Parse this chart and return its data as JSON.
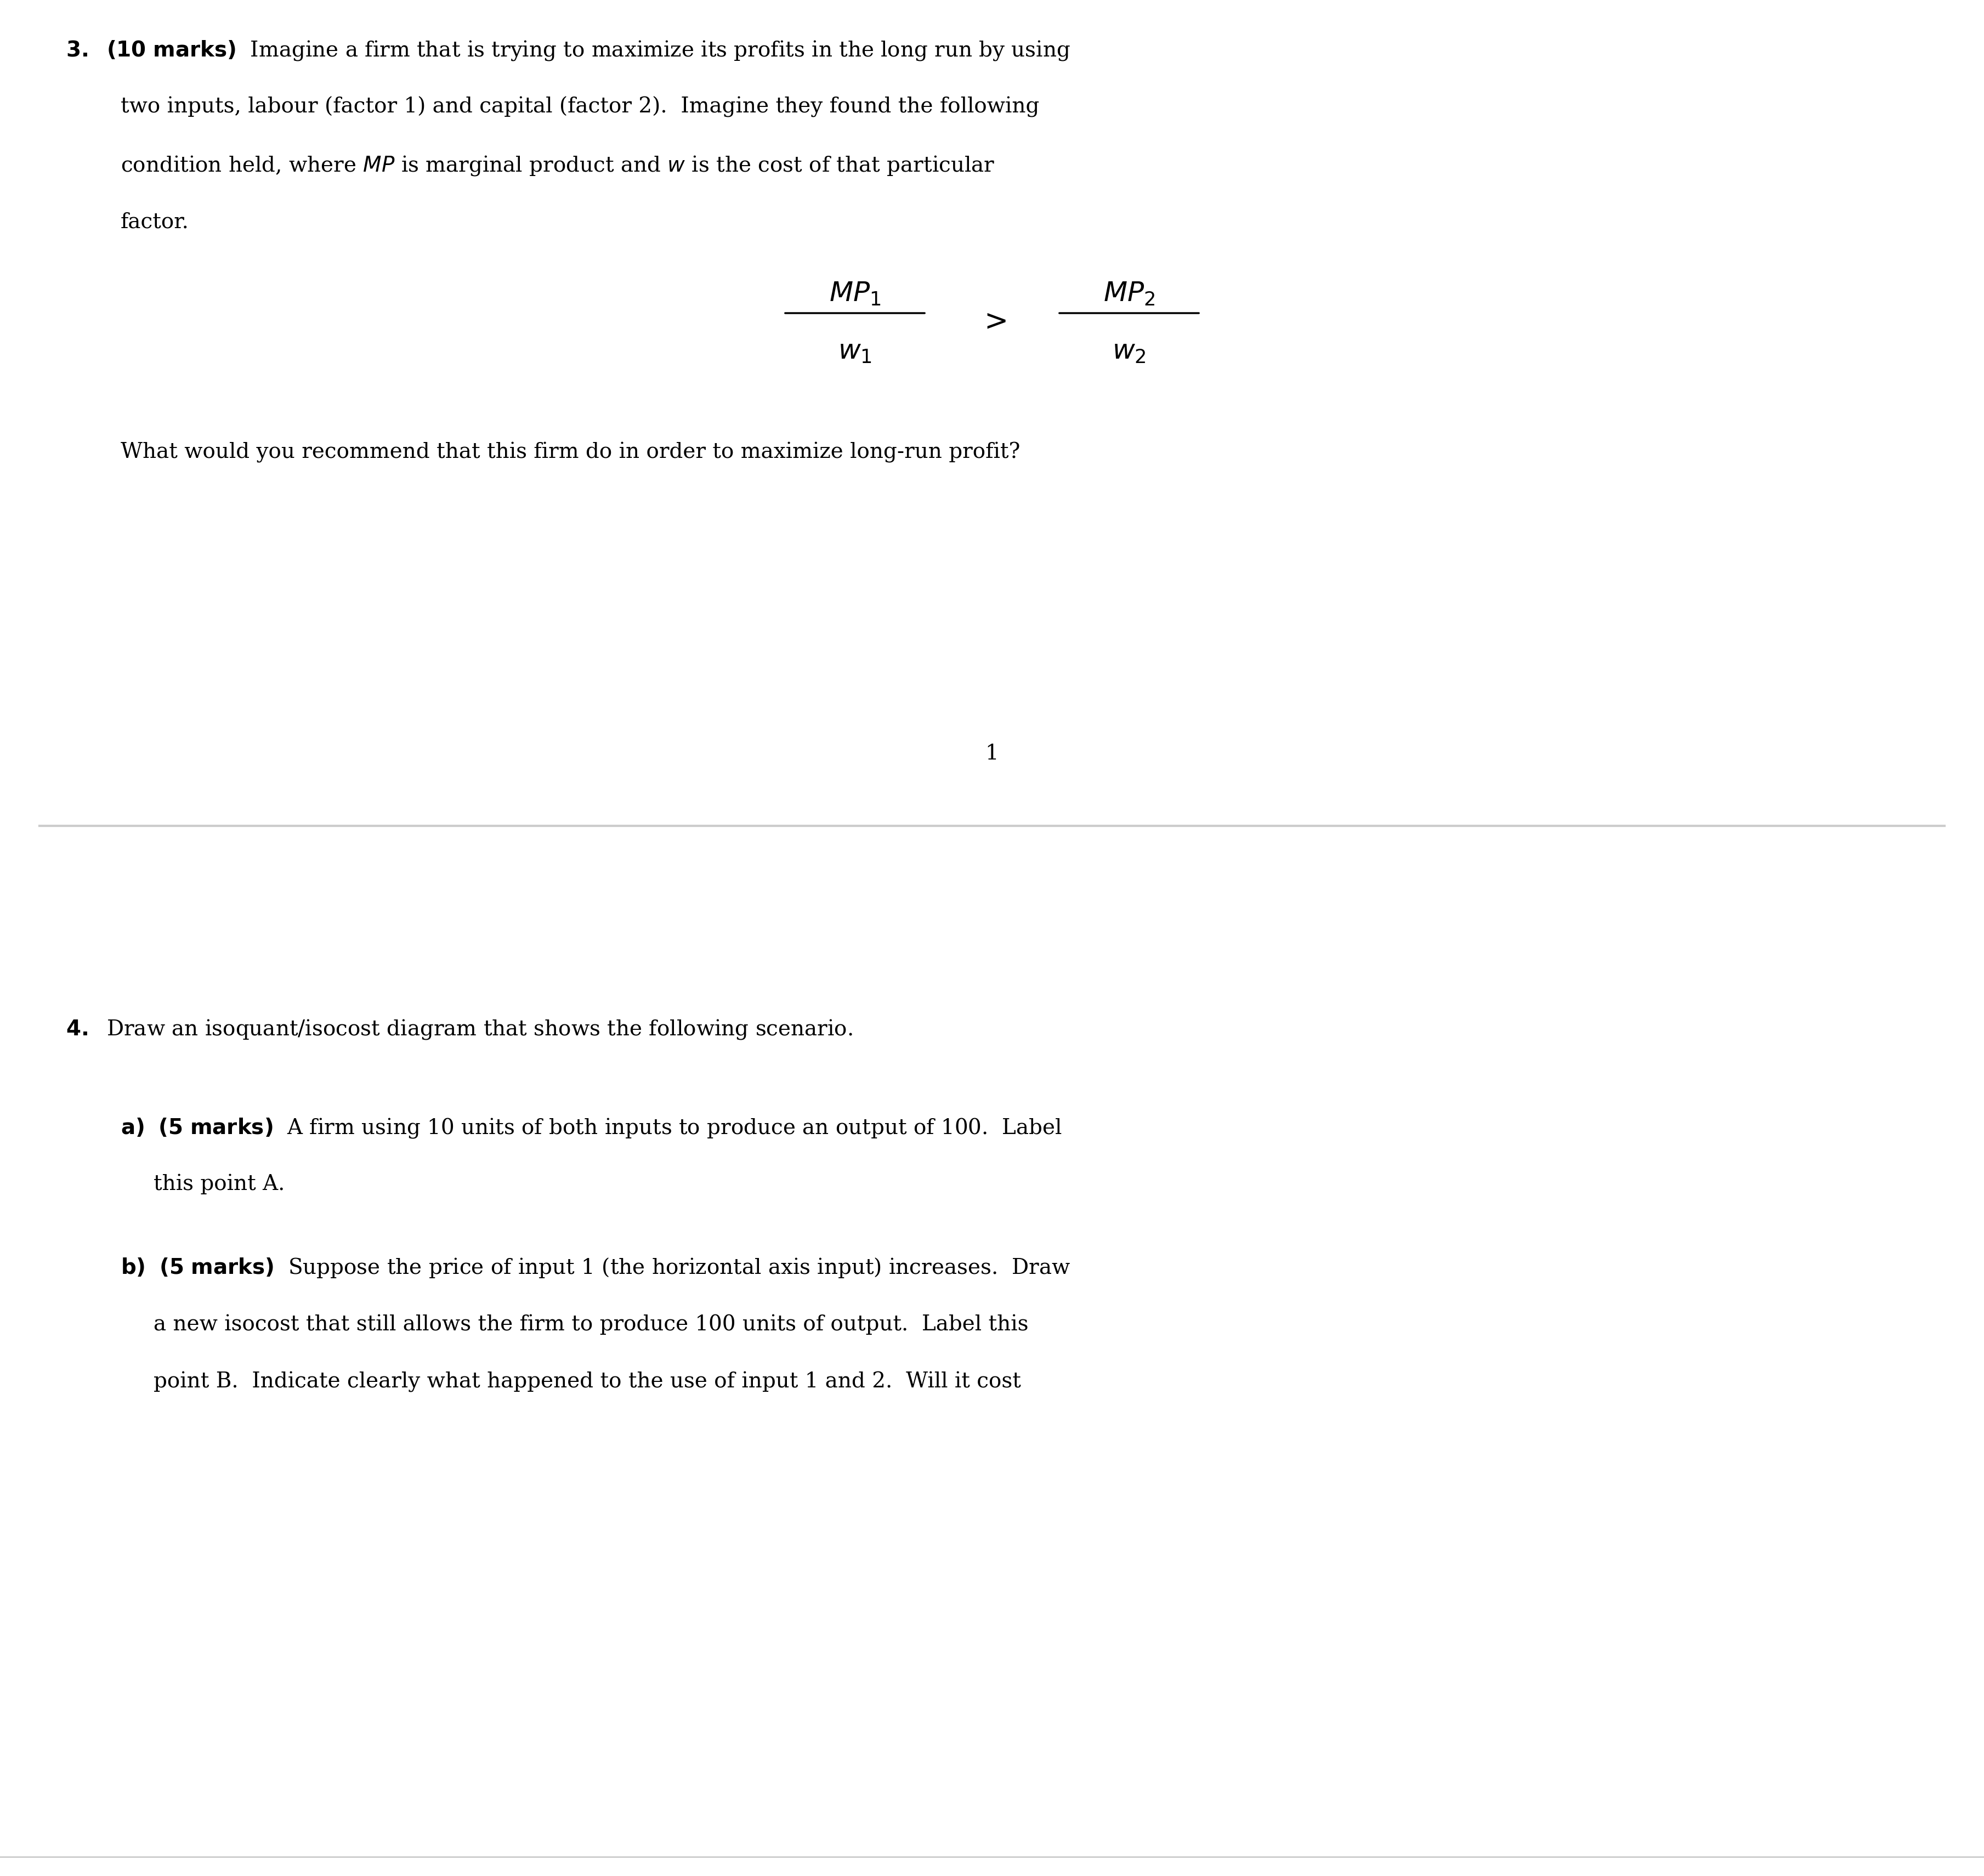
{
  "background_color": "#ffffff",
  "separator_color": "#cccccc",
  "text_color": "#000000",
  "page_number": "1",
  "q3_number": "3.",
  "q3_marks": "(10 marks)",
  "q3_text1": "Imagine a firm that is trying to maximize its profits in the long run by using",
  "q3_text2": "two inputs, labour (factor 1) and capital (factor 2).  Imagine they found the following",
  "q3_text3": "condition held, where",
  "q3_text3b": "MP",
  "q3_text3c": "is marginal product and",
  "q3_text3d": "w",
  "q3_text3e": "is the cost of that particular",
  "q3_text4": "factor.",
  "q3_question": "What would you recommend that this firm do in order to maximize long-run profit?",
  "q4_number": "4.",
  "q4_text": "Draw an isoquant/isocost diagram that shows the following scenario.",
  "q4a_letter": "a)",
  "q4a_marks": "(5 marks)",
  "q4a_text1": "A firm using 10 units of both inputs to produce an output of 100.  Label",
  "q4a_text2": "this point A.",
  "q4b_letter": "b)",
  "q4b_marks": "(5 marks)",
  "q4b_text1": "Suppose the price of input 1 (the horizontal axis input) increases.  Draw",
  "q4b_text2": "a new isocost that still allows the firm to produce 100 units of output.  Label this",
  "q4b_text3": "point B.  Indicate clearly what happened to the use of input 1 and 2.  Will it cost"
}
